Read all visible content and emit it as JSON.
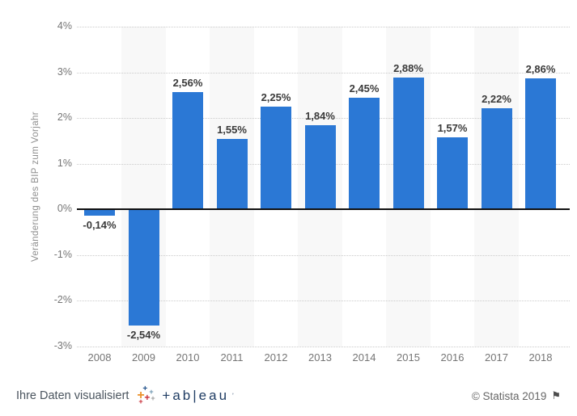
{
  "chart_data": {
    "type": "bar",
    "title": "",
    "xlabel": "",
    "ylabel": "Veränderung des BIP zum Vorjahr",
    "categories": [
      "2008",
      "2009",
      "2010",
      "2011",
      "2012",
      "2013",
      "2014",
      "2015",
      "2016",
      "2017",
      "2018"
    ],
    "values": [
      -0.14,
      -2.54,
      2.56,
      1.55,
      2.25,
      1.84,
      2.45,
      2.88,
      1.57,
      2.22,
      2.86
    ],
    "value_labels": [
      "-0,14%",
      "-2,54%",
      "2,56%",
      "1,55%",
      "2,25%",
      "1,84%",
      "2,45%",
      "2,88%",
      "1,57%",
      "2,22%",
      "2,86%"
    ],
    "ylim": [
      -3,
      4
    ],
    "ytick_labels": [
      "4%",
      "3%",
      "2%",
      "1%",
      "0%",
      "-1%",
      "-2%",
      "-3%"
    ],
    "grid": "horizontal-dotted",
    "legend": "none",
    "bar_color": "#2b78d5",
    "band_color": "#f8f8f8",
    "banded_categories": [
      "2009",
      "2011",
      "2013",
      "2015",
      "2017"
    ]
  },
  "footer": {
    "left_text": "Ihre Daten visualisiert",
    "tableau_wordmark": "+ab|eau",
    "tableau_trademark": "ʼ",
    "right_text": "© Statista 2019",
    "flag_icon": "⚑"
  }
}
